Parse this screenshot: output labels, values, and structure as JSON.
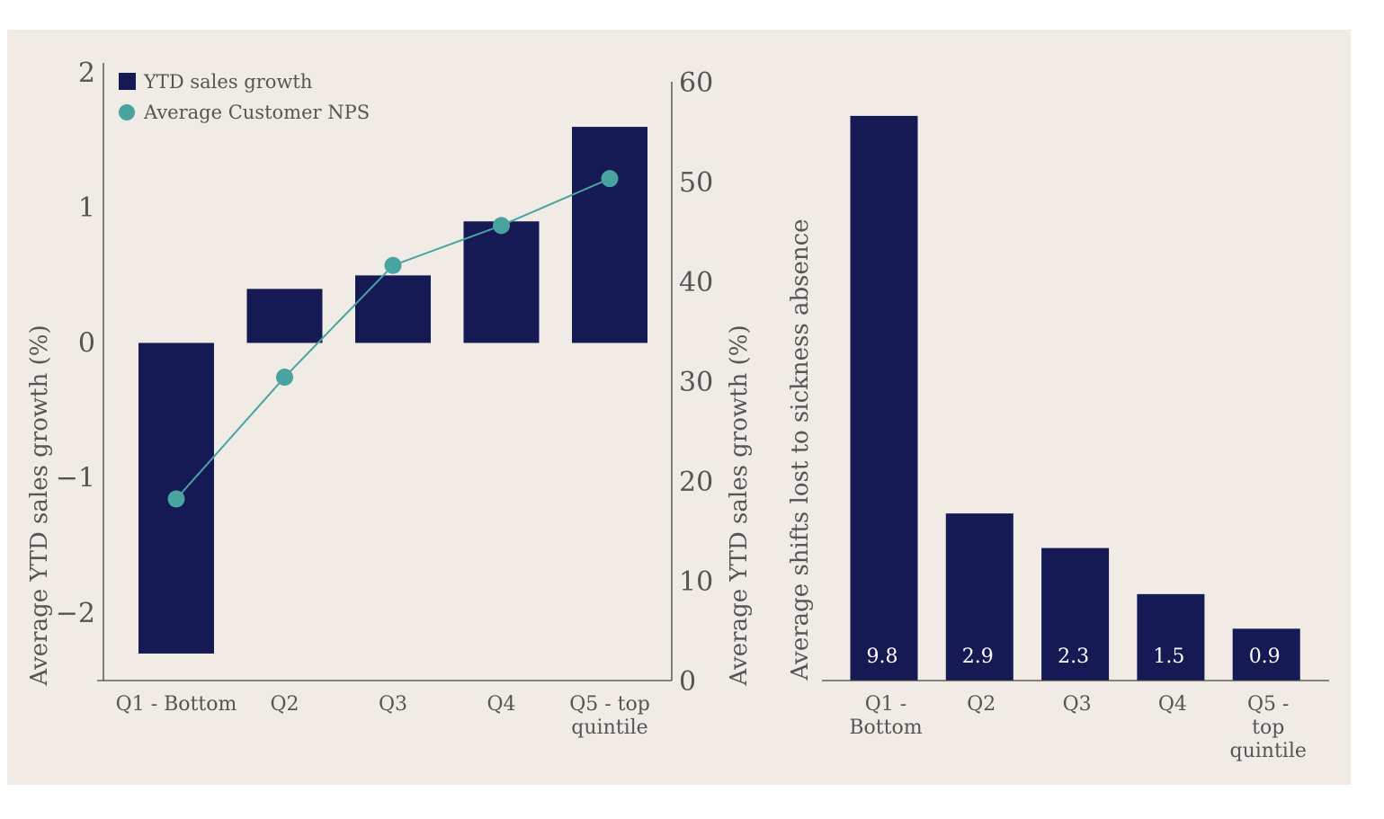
{
  "colors": {
    "background": "#f0ece5",
    "bar": "#161a54",
    "line": "#49a3a1",
    "axis": "#444444",
    "text": "#555555"
  },
  "chart_data": [
    {
      "type": "bar",
      "categories": [
        "Q1 - Bottom",
        "Q2",
        "Q3",
        "Q4",
        "Q5 - top quintile"
      ],
      "series": [
        {
          "name": "YTD sales growth",
          "type": "bar",
          "axis": "left",
          "values": [
            -2.3,
            0.4,
            0.5,
            0.9,
            1.6
          ]
        },
        {
          "name": "Average Customer NPS",
          "type": "line",
          "axis": "right",
          "values": [
            18.2,
            30.4,
            41.6,
            45.6,
            50.3
          ]
        }
      ],
      "ylabel": "Average YTD sales growth (%)",
      "y2label": "Average YTD sales growth (%)",
      "ylim": [
        -2.5,
        2
      ],
      "y2lim": [
        0,
        60
      ],
      "yticks": [
        {
          "value": 2,
          "label": "2"
        },
        {
          "value": 1,
          "label": "1"
        },
        {
          "value": 0,
          "label": "0"
        },
        {
          "value": -1,
          "label": "−1"
        },
        {
          "value": -2,
          "label": "−2"
        }
      ],
      "y2ticks": [
        {
          "value": 60,
          "label": "60"
        },
        {
          "value": 50,
          "label": "50"
        },
        {
          "value": 40,
          "label": "40"
        },
        {
          "value": 30,
          "label": "30"
        },
        {
          "value": 20,
          "label": "20"
        },
        {
          "value": 10,
          "label": "10"
        },
        {
          "value": 0,
          "label": "0"
        }
      ],
      "legend": [
        "YTD sales growth",
        "Average Customer NPS"
      ],
      "legend_position": "top-left",
      "grid": false
    },
    {
      "type": "bar",
      "categories": [
        "Q1 - Bottom",
        "Q2",
        "Q3",
        "Q4",
        "Q5 - top quintile"
      ],
      "values": [
        9.8,
        2.9,
        2.3,
        1.5,
        0.9
      ],
      "data_labels": [
        "9.8",
        "2.9",
        "2.3",
        "1.5",
        "0.9"
      ],
      "ylabel": "Average  shifts lost to sickness absence",
      "ylim": [
        0,
        11
      ],
      "grid": false
    }
  ]
}
